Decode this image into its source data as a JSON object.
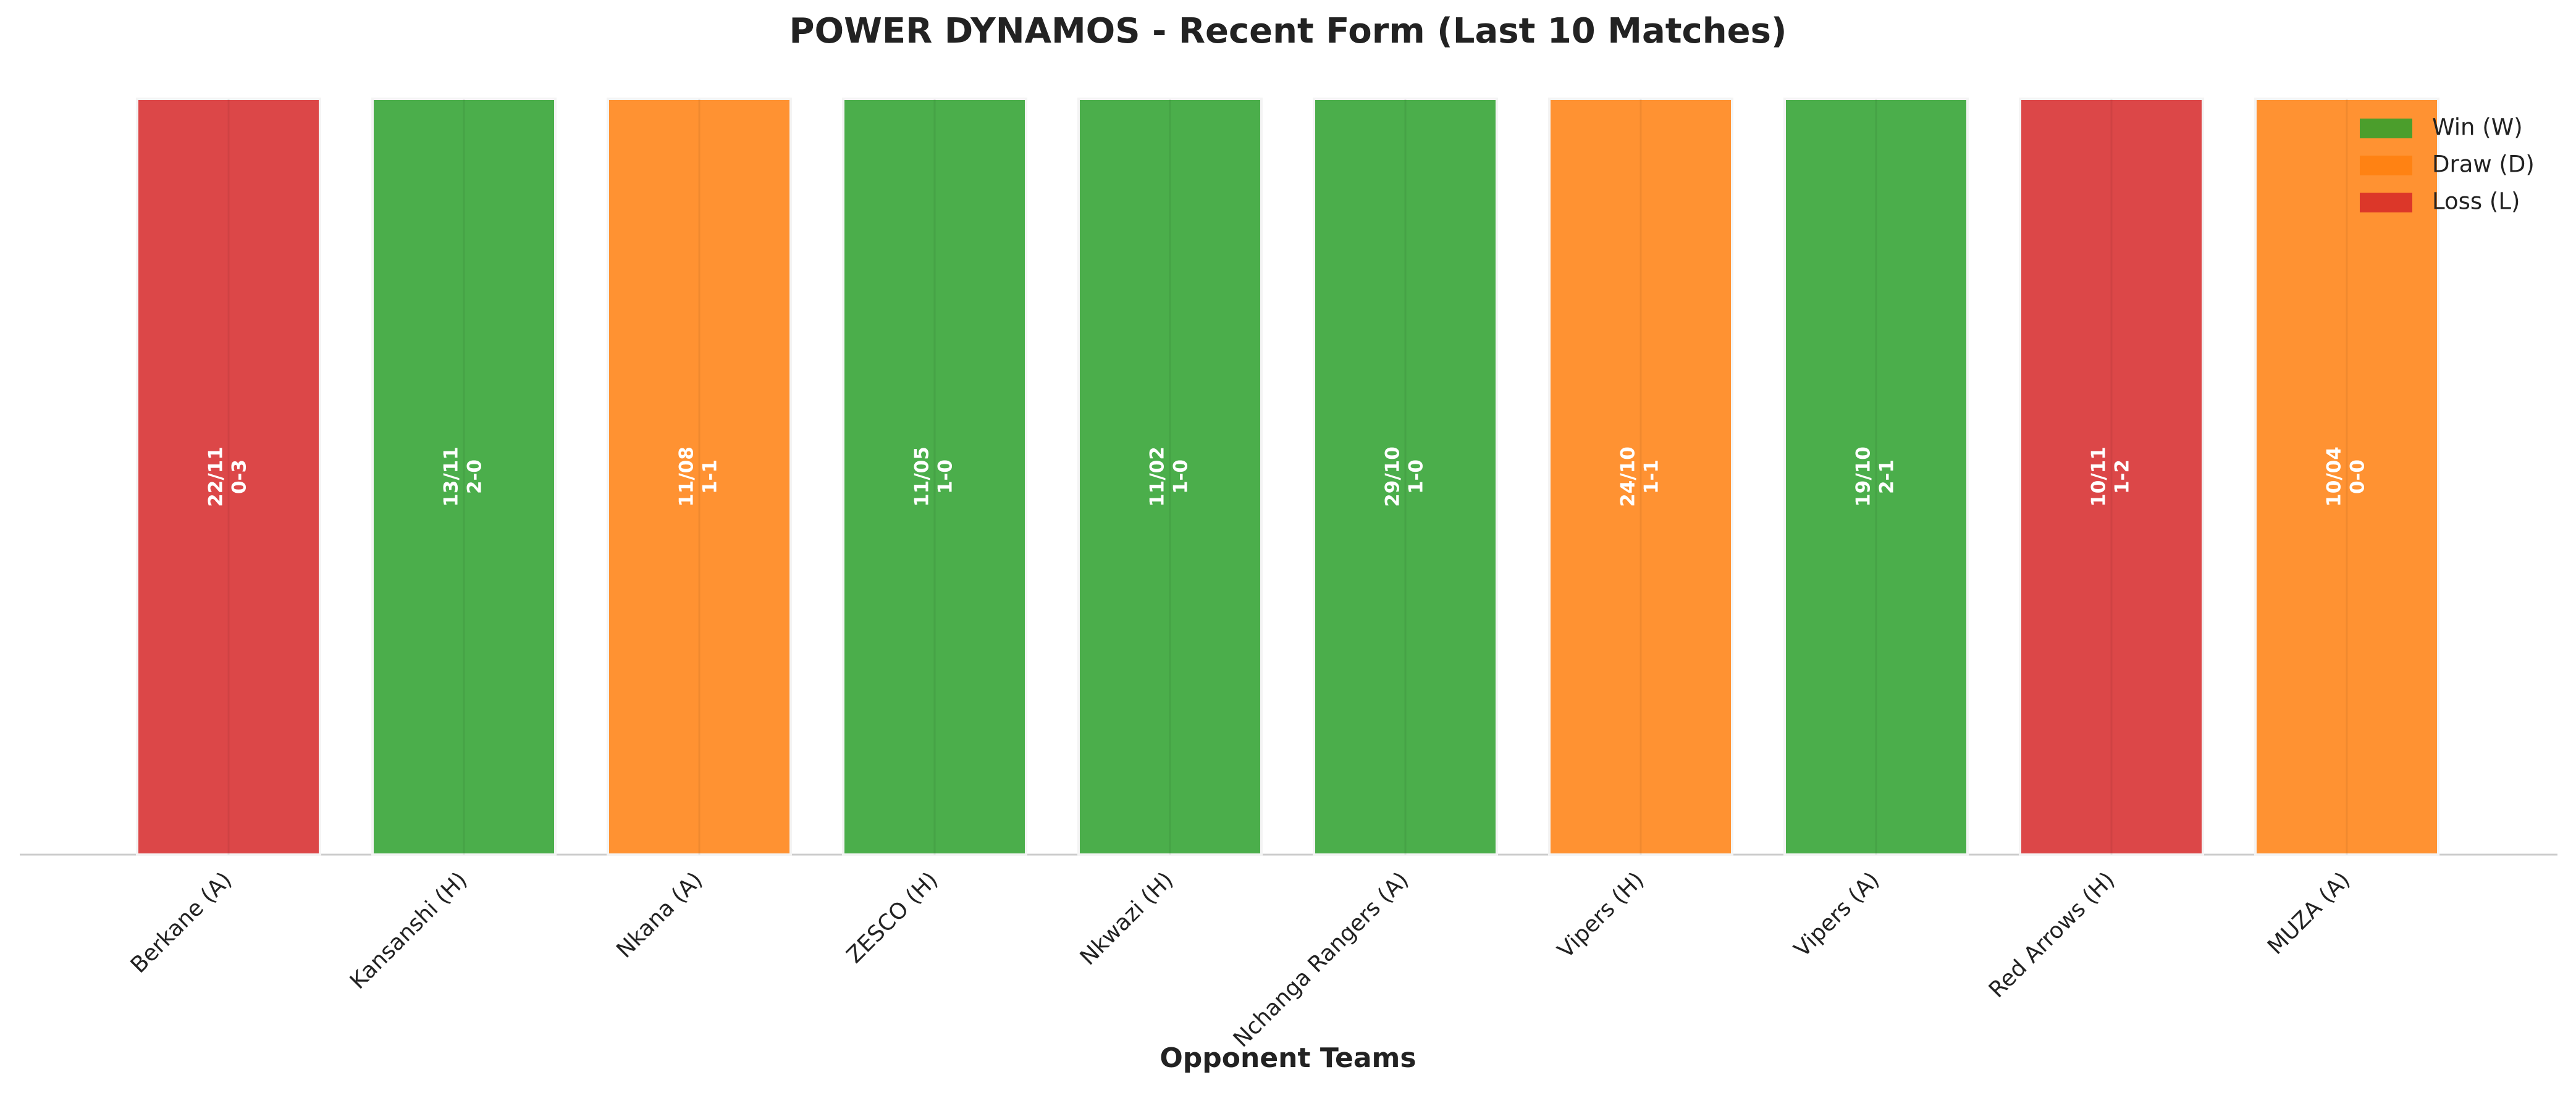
{
  "chart_data": {
    "type": "bar",
    "title": "POWER DYNAMOS - Recent Form (Last 10 Matches)",
    "x_label": "Opponent Teams",
    "categories": [
      "Berkane (A)",
      "Kansanshi (H)",
      "Nkana (A)",
      "ZESCO (H)",
      "Nkwazi (H)",
      "Nchanga Rangers (A)",
      "Vipers (H)",
      "Vipers (A)",
      "Red Arrows (H)",
      "MUZA (A)"
    ],
    "values": [
      1,
      1,
      1,
      1,
      1,
      1,
      1,
      1,
      1,
      1
    ],
    "dates": [
      "22/11",
      "13/11",
      "11/08",
      "11/05",
      "11/02",
      "29/10",
      "24/10",
      "19/10",
      "10/11",
      "10/04"
    ],
    "scores": [
      "0-3",
      "2-0",
      "1-1",
      "1-0",
      "1-0",
      "1-0",
      "1-1",
      "2-1",
      "1-2",
      "0-0"
    ],
    "colors": [
      "#d62728",
      "#2ca02c",
      "#ff7f0e",
      "#2ca02c",
      "#2ca02c",
      "#2ca02c",
      "#ff7f0e",
      "#2ca02c",
      "#d62728",
      "#ff7f0e"
    ],
    "ylim": [
      0,
      1
    ],
    "legend_position": "upper right",
    "legend": [
      {
        "name": "Win (W)",
        "color": "#2ca02c"
      },
      {
        "name": "Draw (D)",
        "color": "#ff7f0e"
      },
      {
        "name": "Loss (L)",
        "color": "#d62728"
      }
    ]
  }
}
